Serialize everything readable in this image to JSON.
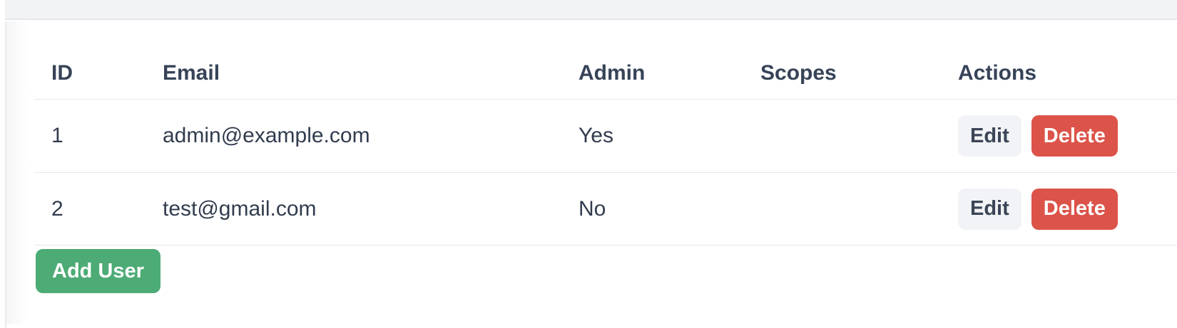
{
  "table": {
    "headers": {
      "id": "ID",
      "email": "Email",
      "admin": "Admin",
      "scopes": "Scopes",
      "actions": "Actions"
    },
    "rows": [
      {
        "id": "1",
        "email": "admin@example.com",
        "admin": "Yes",
        "scopes": ""
      },
      {
        "id": "2",
        "email": "test@gmail.com",
        "admin": "No",
        "scopes": ""
      }
    ]
  },
  "actions": {
    "edit_label": "Edit",
    "delete_label": "Delete",
    "add_user_label": "Add User"
  },
  "colors": {
    "topbar_bg": "#f1f3f5",
    "table_border": "#e4eaef",
    "header_text": "#374357",
    "body_text": "#323c4e",
    "edit_button_bg": "#f1f3f6",
    "delete_button_bg": "#dc5349",
    "add_user_button_bg": "#4dab76",
    "button_text_light": "#ffffff"
  }
}
